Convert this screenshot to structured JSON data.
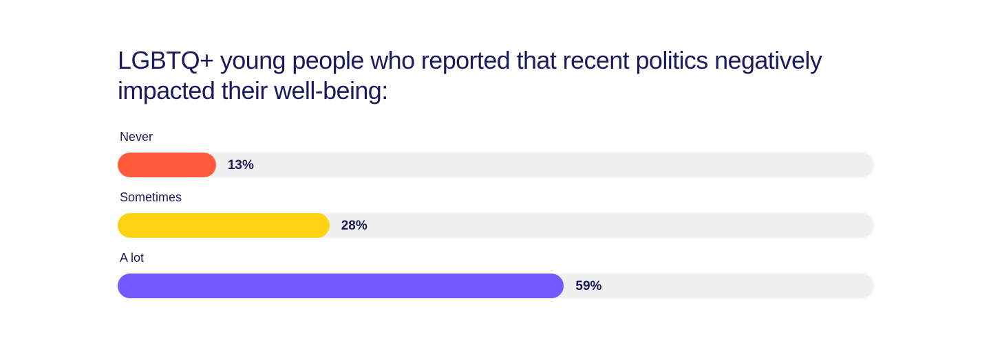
{
  "chart_data": {
    "type": "bar",
    "orientation": "horizontal",
    "title": "LGBTQ+ young people who reported that recent politics negatively impacted their well-being:",
    "categories": [
      "Never",
      "Sometimes",
      "A lot"
    ],
    "values": [
      13,
      28,
      59
    ],
    "value_labels": [
      "13%",
      "28%",
      "59%"
    ],
    "unit": "%",
    "xlim": [
      0,
      100
    ],
    "colors": [
      "#ff5a3c",
      "#ffd214",
      "#7458ff"
    ],
    "track_color": "#f0f0f0",
    "grid": false,
    "legend": "none"
  }
}
